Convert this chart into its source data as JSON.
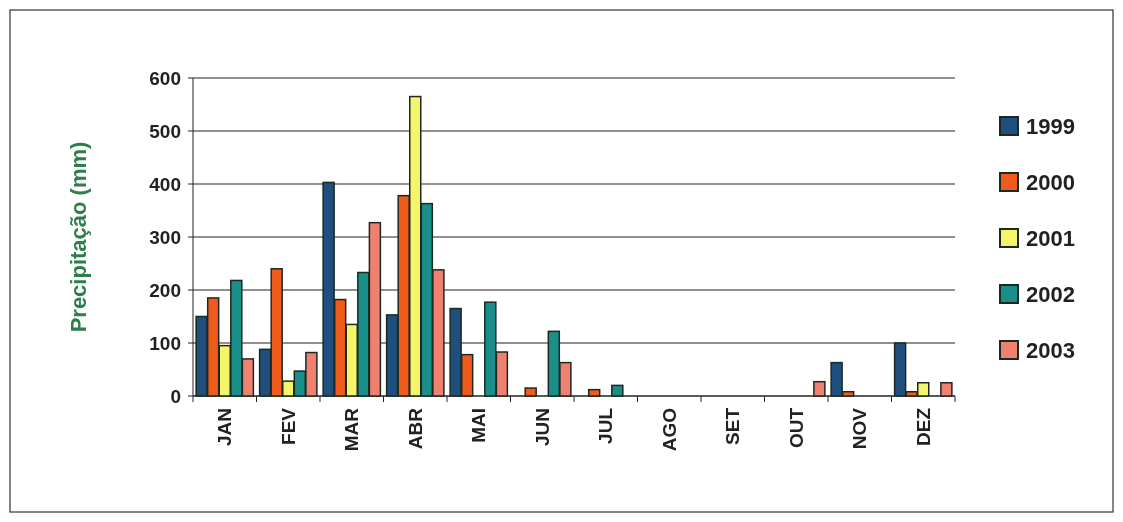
{
  "chart_data": {
    "type": "bar",
    "ylabel": "Precipitação (mm)",
    "categories": [
      "JAN",
      "FEV",
      "MAR",
      "ABR",
      "MAI",
      "JUN",
      "JUL",
      "AGO",
      "SET",
      "OUT",
      "NOV",
      "DEZ"
    ],
    "series": [
      {
        "name": "1999",
        "color": "#1f4f7e",
        "values": [
          150,
          88,
          403,
          153,
          165,
          0,
          0,
          0,
          0,
          0,
          63,
          100
        ]
      },
      {
        "name": "2000",
        "color": "#f05a1a",
        "values": [
          185,
          240,
          182,
          378,
          78,
          15,
          12,
          0,
          0,
          0,
          8,
          8
        ]
      },
      {
        "name": "2001",
        "color": "#f5f56a",
        "values": [
          95,
          28,
          135,
          565,
          0,
          0,
          0,
          0,
          0,
          0,
          0,
          25
        ]
      },
      {
        "name": "2002",
        "color": "#1a8f8a",
        "values": [
          218,
          47,
          233,
          363,
          177,
          122,
          20,
          0,
          0,
          0,
          0,
          0
        ]
      },
      {
        "name": "2003",
        "color": "#f08070",
        "values": [
          70,
          82,
          327,
          238,
          83,
          63,
          0,
          0,
          0,
          27,
          0,
          25
        ]
      }
    ],
    "ylim": [
      0,
      600
    ],
    "yticks": [
      0,
      100,
      200,
      300,
      400,
      500,
      600
    ],
    "grid": "y",
    "legend": "right"
  }
}
